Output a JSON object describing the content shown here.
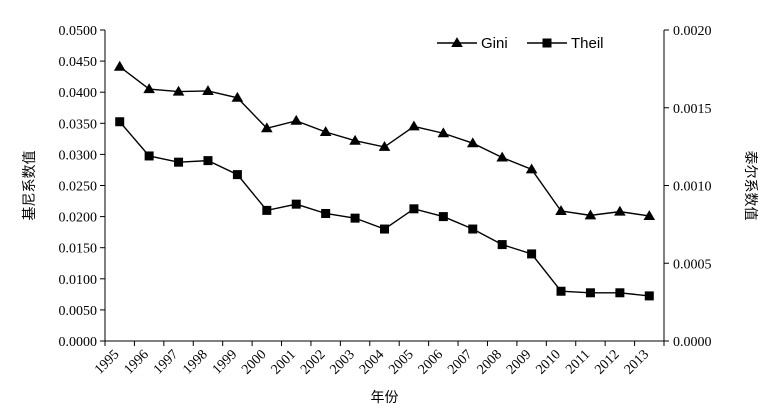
{
  "chart_data": {
    "type": "line",
    "title": "",
    "xlabel": "年份",
    "ylabel_left": "基尼系数值",
    "ylabel_right": "泰尔系数值",
    "categories": [
      "1995",
      "1996",
      "1997",
      "1998",
      "1999",
      "2000",
      "2001",
      "2002",
      "2003",
      "2004",
      "2005",
      "2006",
      "2007",
      "2008",
      "2009",
      "2010",
      "2011",
      "2012",
      "2013"
    ],
    "left_axis": {
      "ylim": [
        0,
        0.05
      ],
      "ticks": [
        "0.0000",
        "0.0050",
        "0.0100",
        "0.0150",
        "0.0200",
        "0.0250",
        "0.0300",
        "0.0350",
        "0.0400",
        "0.0450",
        "0.0500"
      ]
    },
    "right_axis": {
      "ylim": [
        0,
        0.002
      ],
      "ticks": [
        "0.0000",
        "0.0005",
        "0.0010",
        "0.0015",
        "0.0020"
      ]
    },
    "grid": false,
    "legend_position": "top-right",
    "series": [
      {
        "name": "Gini",
        "axis": "left",
        "marker": "triangle",
        "values": [
          0.0441,
          0.0405,
          0.0401,
          0.0402,
          0.0391,
          0.0342,
          0.0354,
          0.0336,
          0.0322,
          0.0312,
          0.0345,
          0.0334,
          0.0318,
          0.0295,
          0.0276,
          0.0209,
          0.0202,
          0.0208,
          0.0201
        ]
      },
      {
        "name": "Theil",
        "axis": "right",
        "marker": "square",
        "values": [
          0.00141,
          0.00119,
          0.00115,
          0.00116,
          0.00107,
          0.00084,
          0.00088,
          0.00082,
          0.00079,
          0.00072,
          0.00085,
          0.0008,
          0.00072,
          0.00062,
          0.00056,
          0.00032,
          0.00031,
          0.00031,
          0.00029
        ]
      }
    ],
    "colors": {
      "line": "#000000",
      "axis": "#000000",
      "background": "#ffffff"
    }
  }
}
